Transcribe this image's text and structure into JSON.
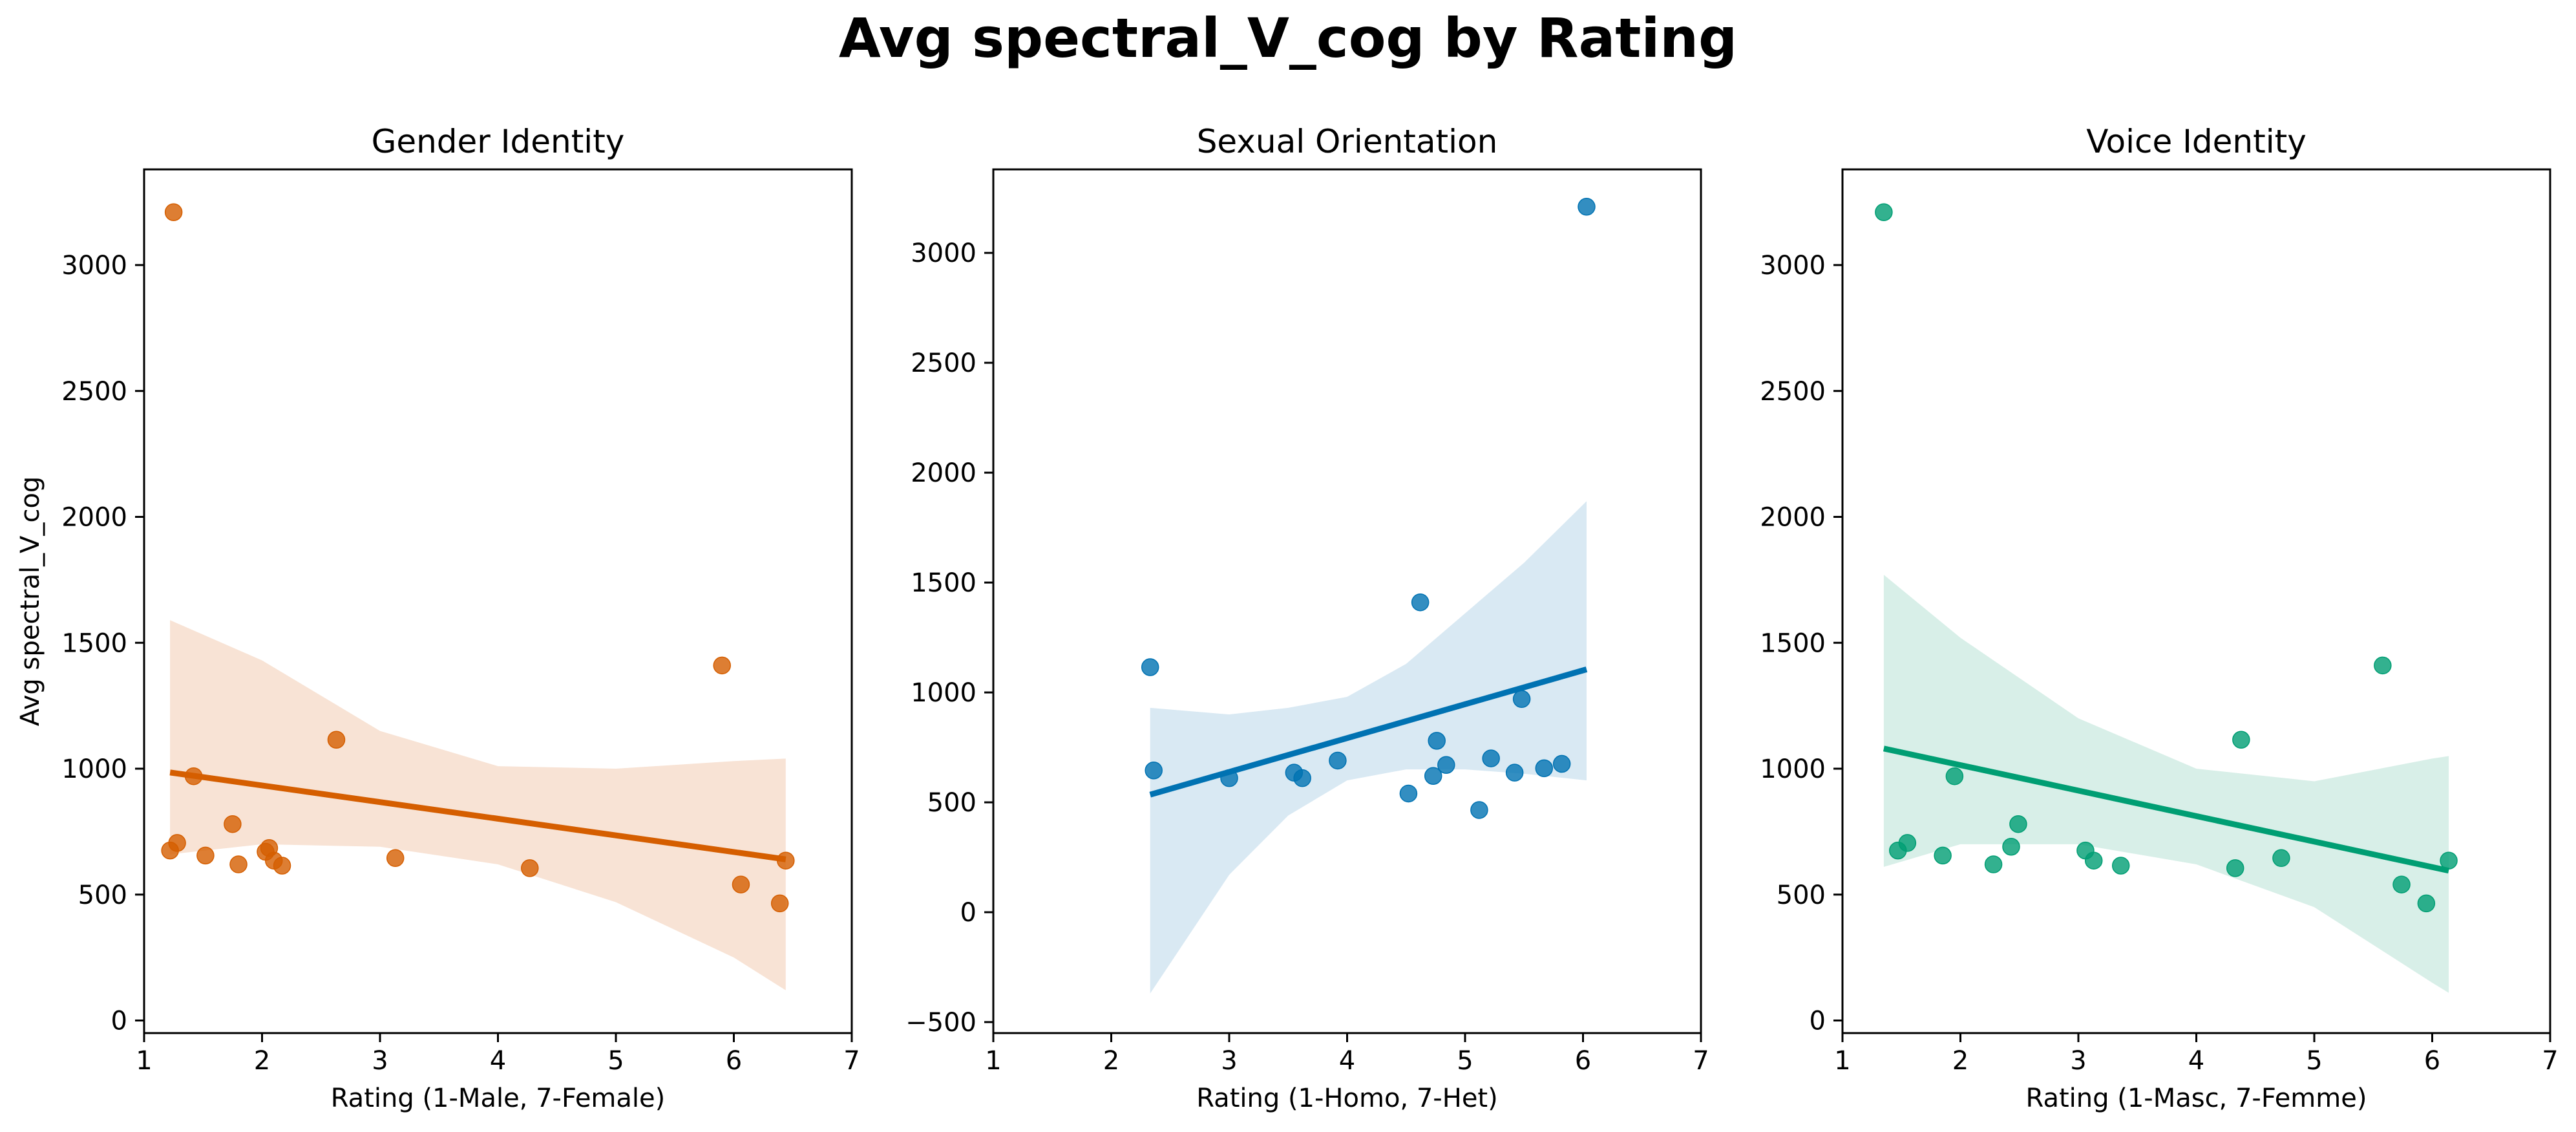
{
  "title": "Avg spectral_V_cog by Rating",
  "ylabel": "Avg spectral_V_cog",
  "chart_data": [
    {
      "type": "scatter",
      "title": "Gender Identity",
      "xlabel": "Rating (1-Male, 7-Female)",
      "ylabel": "Avg spectral_V_cog",
      "xlim": [
        1,
        7
      ],
      "ylim": [
        -50,
        3380
      ],
      "xticks": [
        1,
        2,
        3,
        4,
        5,
        6,
        7
      ],
      "yticks": [
        0,
        500,
        1000,
        1500,
        2000,
        2500,
        3000
      ],
      "color": "#d55e00",
      "band_color": "#f8e3d5",
      "points": [
        {
          "x": 1.25,
          "y": 3210
        },
        {
          "x": 1.22,
          "y": 675
        },
        {
          "x": 1.28,
          "y": 705
        },
        {
          "x": 1.42,
          "y": 970
        },
        {
          "x": 1.52,
          "y": 655
        },
        {
          "x": 1.75,
          "y": 780
        },
        {
          "x": 1.8,
          "y": 620
        },
        {
          "x": 2.03,
          "y": 670
        },
        {
          "x": 2.06,
          "y": 685
        },
        {
          "x": 2.1,
          "y": 635
        },
        {
          "x": 2.17,
          "y": 615
        },
        {
          "x": 2.63,
          "y": 1115
        },
        {
          "x": 3.13,
          "y": 645
        },
        {
          "x": 4.27,
          "y": 605
        },
        {
          "x": 5.9,
          "y": 1410
        },
        {
          "x": 6.06,
          "y": 540
        },
        {
          "x": 6.39,
          "y": 465
        },
        {
          "x": 6.44,
          "y": 635
        }
      ],
      "trend": {
        "x": [
          1.22,
          6.44
        ],
        "y": [
          985,
          640
        ]
      },
      "ci": {
        "x": [
          1.22,
          2.0,
          3.0,
          4.0,
          5.0,
          6.0,
          6.44
        ],
        "lower": [
          660,
          700,
          690,
          620,
          470,
          250,
          120
        ],
        "upper": [
          1590,
          1430,
          1150,
          1010,
          1000,
          1030,
          1040
        ]
      }
    },
    {
      "type": "scatter",
      "title": "Sexual Orientation",
      "xlabel": "Rating (1-Homo, 7-Het)",
      "ylabel": "",
      "xlim": [
        1,
        7
      ],
      "ylim": [
        -550,
        3380
      ],
      "xticks": [
        1,
        2,
        3,
        4,
        5,
        6,
        7
      ],
      "yticks": [
        -500,
        0,
        500,
        1000,
        1500,
        2000,
        2500,
        3000
      ],
      "color": "#0072b2",
      "band_color": "#d9e9f3",
      "points": [
        {
          "x": 2.33,
          "y": 1115
        },
        {
          "x": 2.36,
          "y": 645
        },
        {
          "x": 3.0,
          "y": 610
        },
        {
          "x": 3.55,
          "y": 635
        },
        {
          "x": 3.62,
          "y": 610
        },
        {
          "x": 3.92,
          "y": 690
        },
        {
          "x": 4.52,
          "y": 540
        },
        {
          "x": 4.62,
          "y": 1410
        },
        {
          "x": 4.73,
          "y": 620
        },
        {
          "x": 4.76,
          "y": 780
        },
        {
          "x": 4.84,
          "y": 670
        },
        {
          "x": 5.12,
          "y": 465
        },
        {
          "x": 5.22,
          "y": 700
        },
        {
          "x": 5.42,
          "y": 635
        },
        {
          "x": 5.48,
          "y": 970
        },
        {
          "x": 5.67,
          "y": 655
        },
        {
          "x": 5.82,
          "y": 675
        },
        {
          "x": 6.03,
          "y": 3210
        }
      ],
      "trend": {
        "x": [
          2.33,
          6.03
        ],
        "y": [
          535,
          1105
        ]
      },
      "ci": {
        "x": [
          2.33,
          3.0,
          3.5,
          4.0,
          4.5,
          5.0,
          5.5,
          6.03
        ],
        "lower": [
          -370,
          170,
          440,
          600,
          650,
          650,
          630,
          600
        ],
        "upper": [
          930,
          900,
          930,
          980,
          1130,
          1360,
          1590,
          1870
        ]
      }
    },
    {
      "type": "scatter",
      "title": "Voice Identity",
      "xlabel": "Rating (1-Masc, 7-Femme)",
      "ylabel": "",
      "xlim": [
        1,
        7
      ],
      "ylim": [
        -50,
        3380
      ],
      "xticks": [
        1,
        2,
        3,
        4,
        5,
        6,
        7
      ],
      "yticks": [
        0,
        500,
        1000,
        1500,
        2000,
        2500,
        3000
      ],
      "color": "#009e73",
      "band_color": "#d8efe8",
      "points": [
        {
          "x": 1.35,
          "y": 3210
        },
        {
          "x": 1.47,
          "y": 675
        },
        {
          "x": 1.55,
          "y": 705
        },
        {
          "x": 1.85,
          "y": 655
        },
        {
          "x": 1.95,
          "y": 970
        },
        {
          "x": 2.28,
          "y": 620
        },
        {
          "x": 2.43,
          "y": 690
        },
        {
          "x": 2.49,
          "y": 780
        },
        {
          "x": 3.06,
          "y": 675
        },
        {
          "x": 3.13,
          "y": 635
        },
        {
          "x": 3.36,
          "y": 615
        },
        {
          "x": 4.33,
          "y": 605
        },
        {
          "x": 4.38,
          "y": 1115
        },
        {
          "x": 4.72,
          "y": 645
        },
        {
          "x": 5.58,
          "y": 1410
        },
        {
          "x": 5.74,
          "y": 540
        },
        {
          "x": 5.95,
          "y": 465
        },
        {
          "x": 6.14,
          "y": 635
        }
      ],
      "trend": {
        "x": [
          1.35,
          6.14
        ],
        "y": [
          1080,
          595
        ]
      },
      "ci": {
        "x": [
          1.35,
          2.0,
          3.0,
          4.0,
          5.0,
          6.0,
          6.14
        ],
        "lower": [
          610,
          700,
          700,
          620,
          450,
          150,
          110
        ],
        "upper": [
          1770,
          1520,
          1200,
          1000,
          950,
          1040,
          1050
        ]
      }
    }
  ]
}
